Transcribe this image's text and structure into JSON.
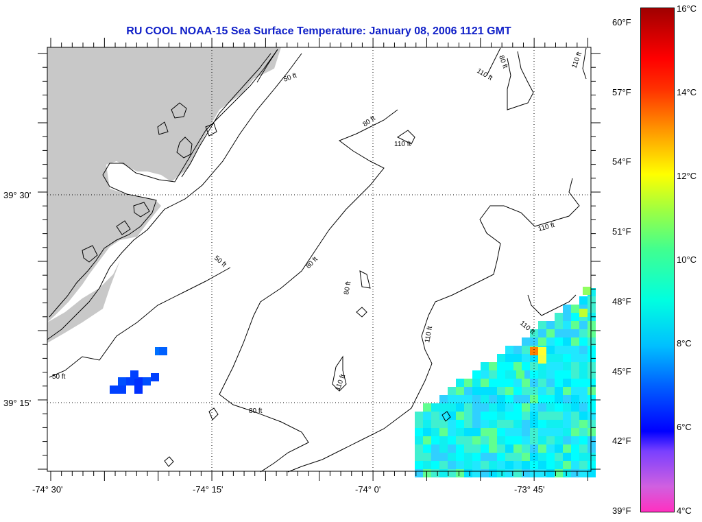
{
  "title": "RU COOL  NOAA-15  Sea Surface Temperature:  January 08, 2006 1121 GMT",
  "map": {
    "x_axis": {
      "labels": [
        "-74° 30'",
        "-74° 15'",
        "-74° 0'",
        "-73° 45'"
      ]
    },
    "y_axis": {
      "labels": [
        "39° 30'",
        "39° 15'"
      ]
    },
    "contour_labels": [
      "50 ft",
      "80 ft",
      "110 ft"
    ],
    "colors": {
      "land": "#c8c8c8",
      "grid": "#000000"
    }
  },
  "colorbar": {
    "celsius_labels": [
      "16°C",
      "14°C",
      "12°C",
      "10°C",
      "8°C",
      "6°C",
      "4°C"
    ],
    "fahrenheit_labels": [
      "60°F",
      "57°F",
      "54°F",
      "51°F",
      "48°F",
      "45°F",
      "42°F",
      "39°F"
    ]
  }
}
